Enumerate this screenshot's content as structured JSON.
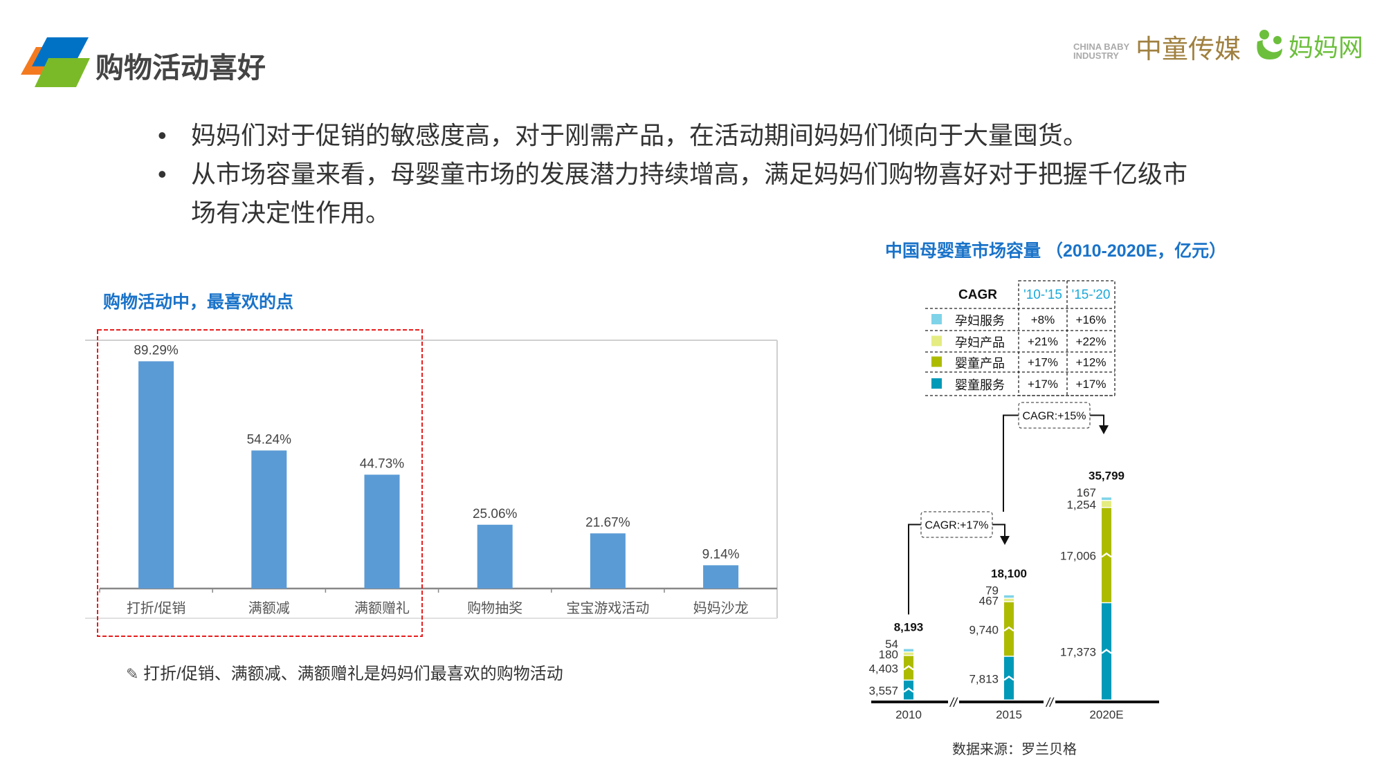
{
  "header": {
    "title": "购物活动喜好",
    "logo_colors": [
      "#f47a20",
      "#0072c6",
      "#7aba28"
    ],
    "brands": [
      {
        "name": "中童传媒",
        "sub": "CHINA BABY INDUSTRY"
      },
      {
        "name": "妈妈网"
      }
    ]
  },
  "bullets": [
    "妈妈们对于促销的敏感度高，对于刚需产品，在活动期间妈妈们倾向于大量囤货。",
    "从市场容量来看，母婴童市场的发展潜力持续增高，满足妈妈们购物喜好对于把握千亿级市场有决定性作用。"
  ],
  "bullet_symbol": "•",
  "footnote": {
    "icon": "pencil-icon",
    "text": "打折/促销、满额减、满额赠礼是妈妈们最喜欢的购物活动"
  },
  "source": "数据来源：罗兰贝格",
  "chart_data": [
    {
      "type": "bar",
      "title": "购物活动中，最喜欢的点",
      "categories": [
        "打折/促销",
        "满额减",
        "满额赠礼",
        "购物抽奖",
        "宝宝游戏活动",
        "妈妈沙龙"
      ],
      "values": [
        89.29,
        54.24,
        44.73,
        25.06,
        21.67,
        9.14
      ],
      "value_labels": [
        "89.29%",
        "54.24%",
        "44.73%",
        "25.06%",
        "21.67%",
        "9.14%"
      ],
      "ylim": [
        0,
        100
      ],
      "color": "#5b9bd5",
      "highlight": {
        "categories": [
          "打折/促销",
          "满额减",
          "满额赠礼"
        ],
        "color": "#e81c1c",
        "style": "dashed"
      },
      "grid": false
    },
    {
      "type": "bar",
      "stacked": true,
      "title": "中国母婴童市场容量 （2010-2020E，亿元）",
      "categories": [
        "2010",
        "2015",
        "2020E"
      ],
      "series": [
        {
          "name": "婴童服务",
          "color": "#0099b8",
          "values": [
            3557,
            7813,
            17373
          ]
        },
        {
          "name": "婴童产品",
          "color": "#adbb00",
          "values": [
            4403,
            9740,
            17006
          ]
        },
        {
          "name": "孕妇产品",
          "color": "#e4ec82",
          "values": [
            180,
            467,
            1254
          ]
        },
        {
          "name": "孕妇服务",
          "color": "#7fd3e8",
          "values": [
            54,
            79,
            167
          ]
        }
      ],
      "totals": [
        "8,193",
        "18,100",
        "35,799"
      ],
      "value_labels": [
        [
          "3,557",
          "4,403",
          "180",
          "54"
        ],
        [
          "7,813",
          "9,740",
          "467",
          "79"
        ],
        [
          "17,373",
          "17,006",
          "1,254",
          "167"
        ]
      ],
      "axis_break": true,
      "growth_annotations": [
        "CAGR:+17%",
        "CAGR:+15%"
      ],
      "cagr_table": {
        "header": "CAGR",
        "columns": [
          "'10-'15",
          "'15-'20"
        ],
        "rows": [
          {
            "name": "孕妇服务",
            "color": "#7fd3e8",
            "values": [
              "+8%",
              "+16%"
            ]
          },
          {
            "name": "孕妇产品",
            "color": "#e4ec82",
            "values": [
              "+21%",
              "+22%"
            ]
          },
          {
            "name": "婴童产品",
            "color": "#adbb00",
            "values": [
              "+17%",
              "+12%"
            ]
          },
          {
            "name": "婴童服务",
            "color": "#0099b8",
            "values": [
              "+17%",
              "+17%"
            ]
          }
        ]
      }
    }
  ]
}
